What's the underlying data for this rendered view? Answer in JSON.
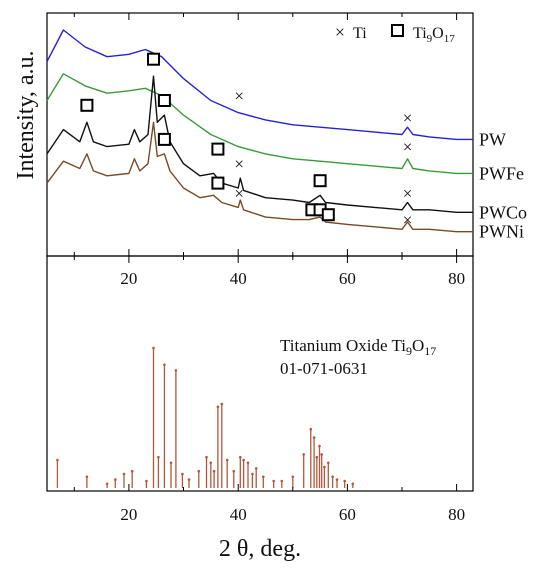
{
  "chart_data": [
    {
      "type": "line",
      "ylabel": "Intensity, a.u.",
      "xlabel": "2 θ, deg.",
      "xlim": [
        5,
        83
      ],
      "xticks": [
        20,
        40,
        60,
        80
      ],
      "legend": {
        "position": "top-right",
        "entries": [
          {
            "marker": "×",
            "label": "Ti"
          },
          {
            "marker": "□",
            "label": "Ti₉O₁₇"
          }
        ]
      },
      "series": [
        {
          "name": "PW",
          "color": "#2323d6",
          "x": [
            5,
            8,
            12,
            16,
            20,
            23,
            26,
            30,
            35,
            40,
            45,
            50,
            55,
            60,
            65,
            70,
            71,
            72,
            75,
            80,
            83
          ],
          "y": [
            0.8,
            0.93,
            0.86,
            0.82,
            0.83,
            0.85,
            0.82,
            0.73,
            0.64,
            0.59,
            0.56,
            0.54,
            0.53,
            0.52,
            0.51,
            0.5,
            0.53,
            0.5,
            0.49,
            0.48,
            0.48
          ]
        },
        {
          "name": "PWFe",
          "color": "#3a9a3a",
          "x": [
            5,
            8,
            12,
            16,
            20,
            23,
            26,
            30,
            35,
            40,
            45,
            50,
            55,
            60,
            65,
            70,
            71,
            72,
            75,
            80,
            83
          ],
          "y": [
            0.64,
            0.75,
            0.7,
            0.67,
            0.68,
            0.69,
            0.66,
            0.58,
            0.5,
            0.45,
            0.42,
            0.4,
            0.39,
            0.38,
            0.37,
            0.36,
            0.4,
            0.36,
            0.35,
            0.34,
            0.34
          ]
        },
        {
          "name": "PWCo",
          "color": "#111111",
          "x": [
            5,
            8,
            11,
            12.3,
            13.5,
            16,
            20,
            21,
            22,
            23.5,
            24.5,
            25.2,
            26.5,
            27.5,
            30,
            33,
            35.5,
            37,
            40,
            40.4,
            41,
            45,
            50,
            53,
            55,
            56,
            60,
            65,
            70,
            71,
            72,
            75,
            80,
            83
          ],
          "y": [
            0.42,
            0.52,
            0.47,
            0.55,
            0.47,
            0.45,
            0.46,
            0.52,
            0.47,
            0.5,
            0.74,
            0.55,
            0.58,
            0.47,
            0.38,
            0.33,
            0.34,
            0.3,
            0.28,
            0.32,
            0.27,
            0.24,
            0.23,
            0.22,
            0.25,
            0.22,
            0.21,
            0.2,
            0.19,
            0.22,
            0.19,
            0.19,
            0.18,
            0.18
          ]
        },
        {
          "name": "PWNi",
          "color": "#7a4a24",
          "x": [
            5,
            8,
            11,
            12.3,
            13.5,
            16,
            20,
            21,
            22,
            23.5,
            24.5,
            25.2,
            26.5,
            27.5,
            30,
            33,
            35.5,
            37,
            40,
            40.4,
            41,
            45,
            50,
            53,
            55,
            56,
            60,
            65,
            70,
            71,
            72,
            75,
            80,
            83
          ],
          "y": [
            0.3,
            0.39,
            0.36,
            0.42,
            0.35,
            0.33,
            0.34,
            0.4,
            0.35,
            0.38,
            0.55,
            0.41,
            0.42,
            0.35,
            0.28,
            0.24,
            0.25,
            0.22,
            0.2,
            0.23,
            0.19,
            0.16,
            0.15,
            0.15,
            0.16,
            0.14,
            0.13,
            0.12,
            0.11,
            0.14,
            0.11,
            0.11,
            0.1,
            0.1
          ]
        }
      ],
      "annotations": [
        {
          "marker": "×",
          "x": 40.2,
          "y": 0.66
        },
        {
          "marker": "×",
          "x": 71,
          "y": 0.57
        },
        {
          "marker": "×",
          "x": 71,
          "y": 0.45
        },
        {
          "marker": "□",
          "x": 12.3,
          "y": 0.62
        },
        {
          "marker": "□",
          "x": 24.5,
          "y": 0.81
        },
        {
          "marker": "□",
          "x": 26.5,
          "y": 0.64
        },
        {
          "marker": "□",
          "x": 36.3,
          "y": 0.44
        },
        {
          "marker": "×",
          "x": 40.2,
          "y": 0.38
        },
        {
          "marker": "□",
          "x": 55,
          "y": 0.31
        },
        {
          "marker": "×",
          "x": 71,
          "y": 0.26
        },
        {
          "marker": "□",
          "x": 26.5,
          "y": 0.48
        },
        {
          "marker": "□",
          "x": 36.3,
          "y": 0.3
        },
        {
          "marker": "×",
          "x": 40.2,
          "y": 0.26
        },
        {
          "marker": "□",
          "x": 53.5,
          "y": 0.19
        },
        {
          "marker": "□",
          "x": 55,
          "y": 0.19
        },
        {
          "marker": "□",
          "x": 56.5,
          "y": 0.17
        },
        {
          "marker": "×",
          "x": 71,
          "y": 0.15
        }
      ]
    },
    {
      "type": "bar",
      "title": "Titanium Oxide Ti₉O₁₇",
      "subtitle": "01-071-0631",
      "xlabel": "2 θ, deg.",
      "xlim": [
        5,
        83
      ],
      "xticks": [
        20,
        40,
        60,
        80
      ],
      "color": "#b5563b",
      "x": [
        6.9,
        12.3,
        16.0,
        17.5,
        19.1,
        20.6,
        23.2,
        24.5,
        25.4,
        26.5,
        27.7,
        28.6,
        29.8,
        31.0,
        32.8,
        34.2,
        35.0,
        35.6,
        36.3,
        37.0,
        38.0,
        39.2,
        40.4,
        41.0,
        41.8,
        42.6,
        43.3,
        44.6,
        46.5,
        48.0,
        50.0,
        52.0,
        53.3,
        53.9,
        54.4,
        54.9,
        55.3,
        55.8,
        56.5,
        57.3,
        58.1,
        59.5,
        61.0
      ],
      "y": [
        20,
        8,
        3,
        6,
        10,
        12,
        5,
        100,
        22,
        88,
        18,
        84,
        10,
        6,
        12,
        22,
        18,
        12,
        58,
        60,
        20,
        12,
        22,
        20,
        18,
        10,
        14,
        8,
        5,
        5,
        8,
        24,
        42,
        36,
        22,
        30,
        24,
        15,
        18,
        8,
        6,
        5,
        3
      ]
    }
  ],
  "labels": {
    "ylabel": "Intensity, a.u.",
    "xlabel": "2 θ, deg.",
    "legend_ti": "Ti",
    "legend_tio_base": "Ti",
    "legend_tio_sub1": "9",
    "legend_tio_mid": "O",
    "legend_tio_sub2": "17",
    "ref_title_base": "Titanium Oxide Ti",
    "ref_title_sub1": "9",
    "ref_title_mid": "O",
    "ref_title_sub2": "17",
    "ref_code": "01-071-0631"
  }
}
